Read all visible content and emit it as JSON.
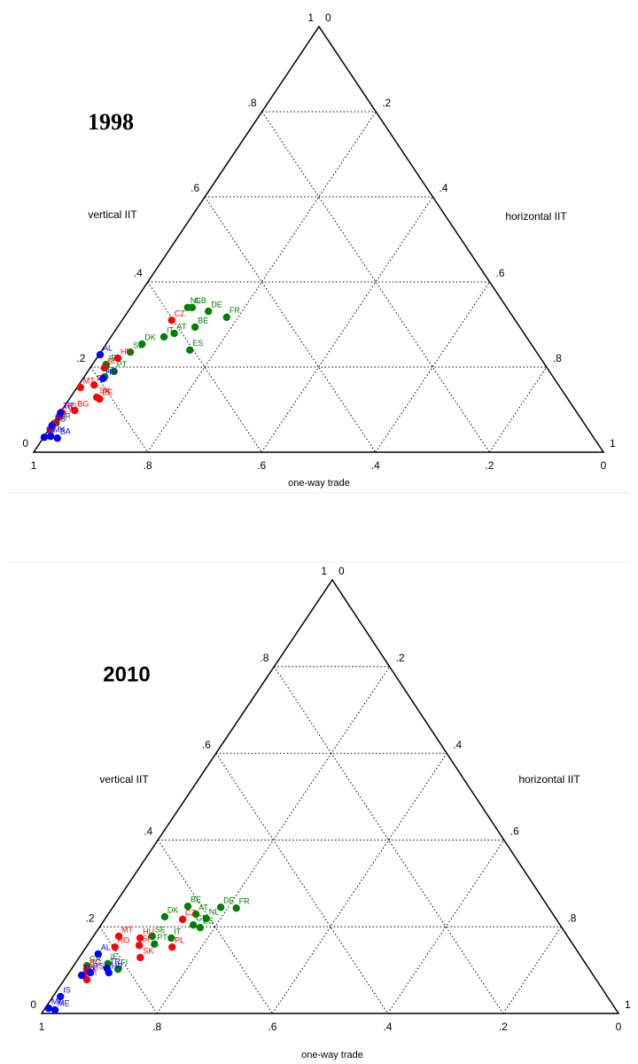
{
  "chart_data": [
    {
      "type": "ternary",
      "title": "1998",
      "vertical_axis": {
        "title": "vertical IIT",
        "ticks": [
          0,
          {
            "value": 0.2,
            "label": ".2"
          },
          {
            "value": 0.4,
            "label": ".4"
          },
          {
            "value": 0.6,
            "label": ".6"
          },
          {
            "value": 0.8,
            "label": ".8"
          },
          1
        ]
      },
      "horizontal_axis": {
        "title": "horizontal IIT",
        "ticks": [
          0,
          {
            "value": 0.2,
            "label": ".2"
          },
          {
            "value": 0.4,
            "label": ".4"
          },
          {
            "value": 0.6,
            "label": ".6"
          },
          {
            "value": 0.8,
            "label": ".8"
          },
          1
        ]
      },
      "one_way_axis": {
        "title": "one-way trade",
        "ticks": [
          0,
          {
            "value": 0.2,
            "label": ".2"
          },
          {
            "value": 0.4,
            "label": ".4"
          },
          {
            "value": 0.6,
            "label": ".6"
          },
          {
            "value": 0.8,
            "label": ".8"
          },
          1
        ]
      },
      "series": [
        {
          "color": "#008000",
          "labels": [
            "NL",
            "GB",
            "DE",
            "FR",
            "BE",
            "IT",
            "AT",
            "SE",
            "DK",
            "ES",
            "IE",
            "PT",
            "FI",
            "GR"
          ],
          "vertical": [
            0.34,
            0.34,
            0.331,
            0.317,
            0.294,
            0.271,
            0.279,
            0.235,
            0.254,
            0.24,
            0.206,
            0.19,
            0.177,
            0.069
          ],
          "horizontal": [
            0.1,
            0.108,
            0.141,
            0.18,
            0.136,
            0.093,
            0.107,
            0.052,
            0.063,
            0.154,
            0.024,
            0.046,
            0.036,
            0.005
          ]
        },
        {
          "color": "#ff0000",
          "labels": [
            "CZ",
            "HU",
            "SI",
            "MT",
            "PL",
            "SK",
            "EE",
            "BG",
            "RO",
            "CY",
            "LV",
            "LT"
          ],
          "vertical": [
            0.31,
            0.221,
            0.198,
            0.152,
            0.158,
            0.129,
            0.125,
            0.098,
            0.094,
            0.083,
            0.067,
            0.054
          ],
          "horizontal": [
            0.087,
            0.037,
            0.025,
            0.006,
            0.027,
            0.046,
            0.053,
            0.023,
            0.002,
            0.003,
            0.002,
            0.002
          ]
        },
        {
          "color": "#0000ff",
          "labels": [
            "AL",
            "HR",
            "TR",
            "RS",
            "BA",
            "IS",
            "MK"
          ],
          "vertical": [
            0.229,
            0.173,
            0.092,
            0.0625,
            0.033,
            0.035,
            0.0375
          ],
          "horizontal": [
            0.002,
            0.035,
            0.001,
            0.001,
            0.025,
            0.001,
            0.011
          ]
        }
      ]
    },
    {
      "type": "ternary",
      "title": "2010",
      "vertical_axis": {
        "title": "vertical IIT",
        "ticks": [
          0,
          {
            "value": 0.2,
            "label": ".2"
          },
          {
            "value": 0.4,
            "label": ".4"
          },
          {
            "value": 0.6,
            "label": ".6"
          },
          {
            "value": 0.8,
            "label": ".8"
          },
          1
        ]
      },
      "horizontal_axis": {
        "title": "horizontal IIT",
        "ticks": [
          0,
          {
            "value": 0.2,
            "label": ".2"
          },
          {
            "value": 0.4,
            "label": ".4"
          },
          {
            "value": 0.6,
            "label": ".6"
          },
          {
            "value": 0.8,
            "label": ".8"
          },
          1
        ]
      },
      "one_way_axis": {
        "title": "one-way trade",
        "ticks": [
          0,
          {
            "value": 0.2,
            "label": ".2"
          },
          {
            "value": 0.4,
            "label": ".4"
          },
          {
            "value": 0.6,
            "label": ".6"
          },
          {
            "value": 0.8,
            "label": ".8"
          },
          1
        ]
      },
      "series": [
        {
          "color": "#008000",
          "labels": [
            "BE",
            "DE",
            "FR",
            "AT",
            "DK",
            "GB",
            "NL",
            "ES",
            "IT",
            "SE",
            "PT",
            "FI",
            "IE",
            "GR"
          ],
          "vertical": [
            0.247,
            0.245,
            0.243,
            0.229,
            0.223,
            0.204,
            0.219,
            0.198,
            0.174,
            0.178,
            0.16,
            0.102,
            0.115,
            0.11
          ],
          "horizontal": [
            0.129,
            0.187,
            0.215,
            0.152,
            0.101,
            0.16,
            0.175,
            0.175,
            0.137,
            0.102,
            0.115,
            0.081,
            0.057,
            0.023
          ]
        },
        {
          "color": "#ff0000",
          "labels": [
            "CZ",
            "MT",
            "HU",
            "SI",
            "RO",
            "PL",
            "SK",
            "BG",
            "CY",
            "LT"
          ],
          "vertical": [
            0.217,
            0.178,
            0.174,
            0.157,
            0.153,
            0.153,
            0.129,
            0.102,
            0.088,
            0.078
          ],
          "horizontal": [
            0.135,
            0.044,
            0.083,
            0.09,
            0.05,
            0.149,
            0.106,
            0.027,
            0.028,
            0.039
          ]
        },
        {
          "color": "#0000ff",
          "labels": [
            "AL",
            "HR",
            "TR",
            "RS",
            "BA",
            "IS",
            "MK",
            "ME"
          ],
          "vertical": [
            0.137,
            0.094,
            0.104,
            0.094,
            0.088,
            0.039,
            0.012,
            0.008
          ],
          "horizontal": [
            0.029,
            0.069,
            0.061,
            0.037,
            0.025,
            0.013,
            0.006,
            0.019
          ]
        }
      ]
    }
  ]
}
